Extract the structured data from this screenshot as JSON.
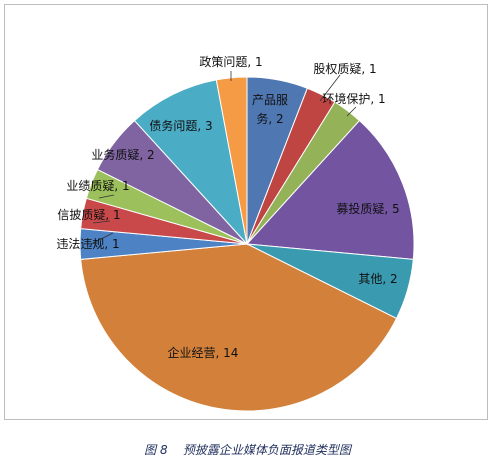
{
  "caption": "图 8    预披露企业媒体负面报道类型图",
  "chart_data": {
    "type": "pie",
    "title": "",
    "slices": [
      {
        "label": "产品服务",
        "value": 2,
        "color": "#4f78b3",
        "text_lines": [
          "产品服",
          "务, 2"
        ]
      },
      {
        "label": "股权质疑",
        "value": 1,
        "color": "#bf4543",
        "text_lines": [
          "股权质疑, 1"
        ]
      },
      {
        "label": "环境保护",
        "value": 1,
        "color": "#94b358",
        "text_lines": [
          "环境保护, 1"
        ]
      },
      {
        "label": "募投质疑",
        "value": 5,
        "color": "#7254a1",
        "text_lines": [
          "募投质疑, 5"
        ]
      },
      {
        "label": "其他",
        "value": 2,
        "color": "#3a9ab0",
        "text_lines": [
          "其他, 2"
        ]
      },
      {
        "label": "企业经营",
        "value": 14,
        "color": "#d3813a",
        "text_lines": [
          "企业经营, 14"
        ]
      },
      {
        "label": "违法违规",
        "value": 1,
        "color": "#4d82c4",
        "text_lines": [
          "违法违规, 1"
        ]
      },
      {
        "label": "信披质疑",
        "value": 1,
        "color": "#c9494a",
        "text_lines": [
          "信披质疑, 1"
        ]
      },
      {
        "label": "业绩质疑",
        "value": 1,
        "color": "#9cc05b",
        "text_lines": [
          "业绩质疑, 1"
        ]
      },
      {
        "label": "业务质疑",
        "value": 2,
        "color": "#8064a2",
        "text_lines": [
          "业务质疑, 2"
        ]
      },
      {
        "label": "债务问题",
        "value": 3,
        "color": "#4bacc6",
        "text_lines": [
          "债务问题, 3"
        ]
      },
      {
        "label": "政策问题",
        "value": 1,
        "color": "#f59a45",
        "text_lines": [
          "政策问题, 1"
        ]
      }
    ]
  }
}
